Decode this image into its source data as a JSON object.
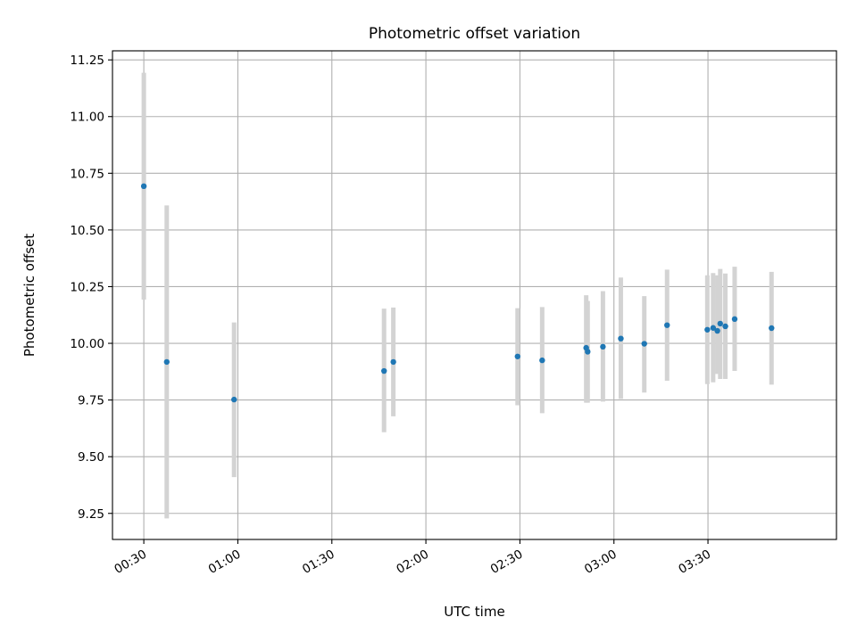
{
  "chart_data": {
    "type": "scatter",
    "title": "Photometric offset variation",
    "xlabel": "UTC time",
    "ylabel": "Photometric offset",
    "x_axis_type": "time",
    "xlim": [
      "00:20",
      "04:11"
    ],
    "ylim": [
      9.135,
      11.29
    ],
    "x_ticks": [
      "00:30",
      "01:00",
      "01:30",
      "02:00",
      "02:30",
      "03:00",
      "03:30"
    ],
    "y_ticks": [
      9.25,
      9.5,
      9.75,
      10.0,
      10.25,
      10.5,
      10.75,
      11.0,
      11.25
    ],
    "y_tick_labels": [
      "9.25",
      "9.50",
      "9.75",
      "10.00",
      "10.25",
      "10.50",
      "10.75",
      "11.00",
      "11.25"
    ],
    "grid": true,
    "colors": {
      "points": "#1f77b4",
      "error_bars": "#d3d3d3",
      "grid": "#b0b0b0"
    },
    "points": [
      {
        "time": "00:30:00",
        "y": 10.693,
        "err_low": 10.193,
        "err_high": 11.193
      },
      {
        "time": "00:37:19",
        "y": 9.918,
        "err_low": 9.228,
        "err_high": 10.608
      },
      {
        "time": "00:58:48",
        "y": 9.752,
        "err_low": 9.41,
        "err_high": 10.092
      },
      {
        "time": "01:46:39",
        "y": 9.878,
        "err_low": 9.608,
        "err_high": 10.153
      },
      {
        "time": "01:49:37",
        "y": 9.918,
        "err_low": 9.678,
        "err_high": 10.158
      },
      {
        "time": "02:29:15",
        "y": 9.942,
        "err_low": 9.727,
        "err_high": 10.155
      },
      {
        "time": "02:37:06",
        "y": 9.925,
        "err_low": 9.692,
        "err_high": 10.16
      },
      {
        "time": "02:51:09",
        "y": 9.98,
        "err_low": 9.738,
        "err_high": 10.212
      },
      {
        "time": "02:51:37",
        "y": 9.963,
        "err_low": 9.738,
        "err_high": 10.187
      },
      {
        "time": "02:56:29",
        "y": 9.985,
        "err_low": 9.743,
        "err_high": 10.23
      },
      {
        "time": "03:02:12",
        "y": 10.021,
        "err_low": 9.755,
        "err_high": 10.29
      },
      {
        "time": "03:09:41",
        "y": 9.998,
        "err_low": 9.783,
        "err_high": 10.208
      },
      {
        "time": "03:16:57",
        "y": 10.08,
        "err_low": 9.835,
        "err_high": 10.325
      },
      {
        "time": "03:29:48",
        "y": 10.06,
        "err_low": 9.82,
        "err_high": 10.3
      },
      {
        "time": "03:31:39",
        "y": 10.068,
        "err_low": 9.828,
        "err_high": 10.31
      },
      {
        "time": "03:33:00",
        "y": 10.055,
        "err_low": 9.865,
        "err_high": 10.3
      },
      {
        "time": "03:33:55",
        "y": 10.087,
        "err_low": 9.843,
        "err_high": 10.328
      },
      {
        "time": "03:35:33",
        "y": 10.075,
        "err_low": 9.843,
        "err_high": 10.308
      },
      {
        "time": "03:38:31",
        "y": 10.107,
        "err_low": 9.878,
        "err_high": 10.338
      },
      {
        "time": "03:50:17",
        "y": 10.067,
        "err_low": 9.818,
        "err_high": 10.315
      }
    ]
  }
}
